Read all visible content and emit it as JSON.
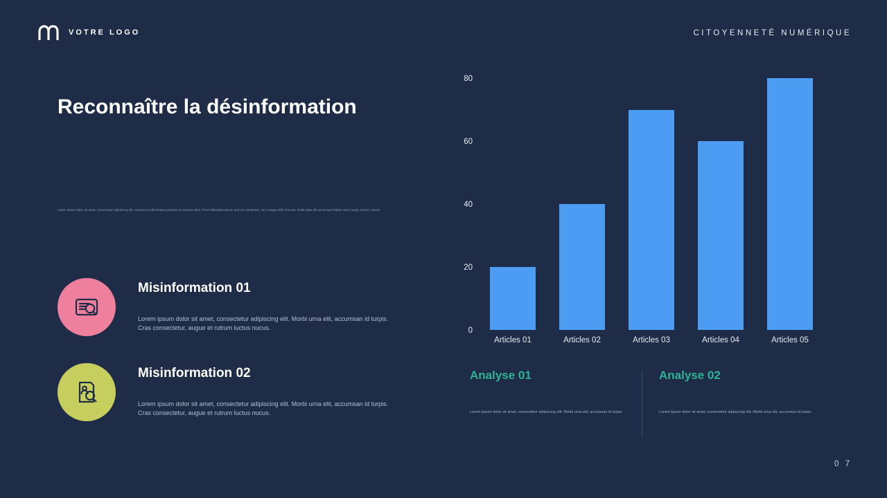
{
  "meta": {
    "page_number": "0 7"
  },
  "colors": {
    "background": "#1e2c47",
    "bar_blue": "#4d9cf4",
    "accent_teal": "#2eb398",
    "circle_pink": "#ee7f9d",
    "circle_green": "#c6ce5e"
  },
  "header": {
    "logo_text": "VOTRE LOGO",
    "logo_icon": "rounded-m-logo-icon",
    "top_right": "CITOYENNETÉ NUMÉRIQUE"
  },
  "main": {
    "title": "Reconnaître la désinformation",
    "intro_small": "Lorem ipsum dolor sit amet, consectetur adipiscing elit. Aenean id velit tempus pulvinar at sit amet dolor. Proin bibendum ipsum sed orci venenatis, nec congue nibh rhoncus. Nulla vitae elit accumsan finibus sed a turpis. Donec viverra urna mattis ullamcorper fringilla. Sed aliquam lacus elit, id posuere elit pulvinar a. Aenean consectetur. Sed aliquam lacus elit, id posuere elit pulvinar a. Aenean interdum augue quis nisi venenatis sagittis. Duis pharetra elit magna.",
    "items": [
      {
        "title": "Misinformation 01",
        "body": "Lorem ipsum dolor sit amet, consectetur adipiscing elit. Morbi urna elit, accumsan id turpis.\nCras consectetur, augue et rutrum luctus nucus.",
        "circle_color": "#ee7f9d",
        "icon": "document-search-icon"
      },
      {
        "title": "Misinformation 02",
        "body": "Lorem ipsum dolor sit amet, consectetur adipiscing elit. Morbi urna elit, accumsan id turpis.\nCras consectetur, augue et rutrum luctus nucus.",
        "circle_color": "#c6ce5e",
        "icon": "person-document-search-icon"
      }
    ]
  },
  "chart_data": {
    "type": "bar",
    "categories": [
      "Articles 01",
      "Articles 02",
      "Articles 03",
      "Articles 04",
      "Articles 05"
    ],
    "values": [
      20,
      40,
      70,
      60,
      80
    ],
    "title": "",
    "xlabel": "",
    "ylabel": "",
    "ylim": [
      0,
      80
    ],
    "yticks": [
      0,
      20,
      40,
      60,
      80
    ],
    "grid": false,
    "legend": false,
    "bar_color": "#4d9cf4"
  },
  "analysis": [
    {
      "title": "Analyse 01",
      "body": "Lorem ipsum dolor sit amet, consectetur adipiscing elit. Morbi urna elit, accumsan id turpis."
    },
    {
      "title": "Analyse 02",
      "body": "Lorem ipsum dolor sit amet, consectetur adipiscing elit. Morbi urna elit, accumsan id turpis."
    }
  ]
}
